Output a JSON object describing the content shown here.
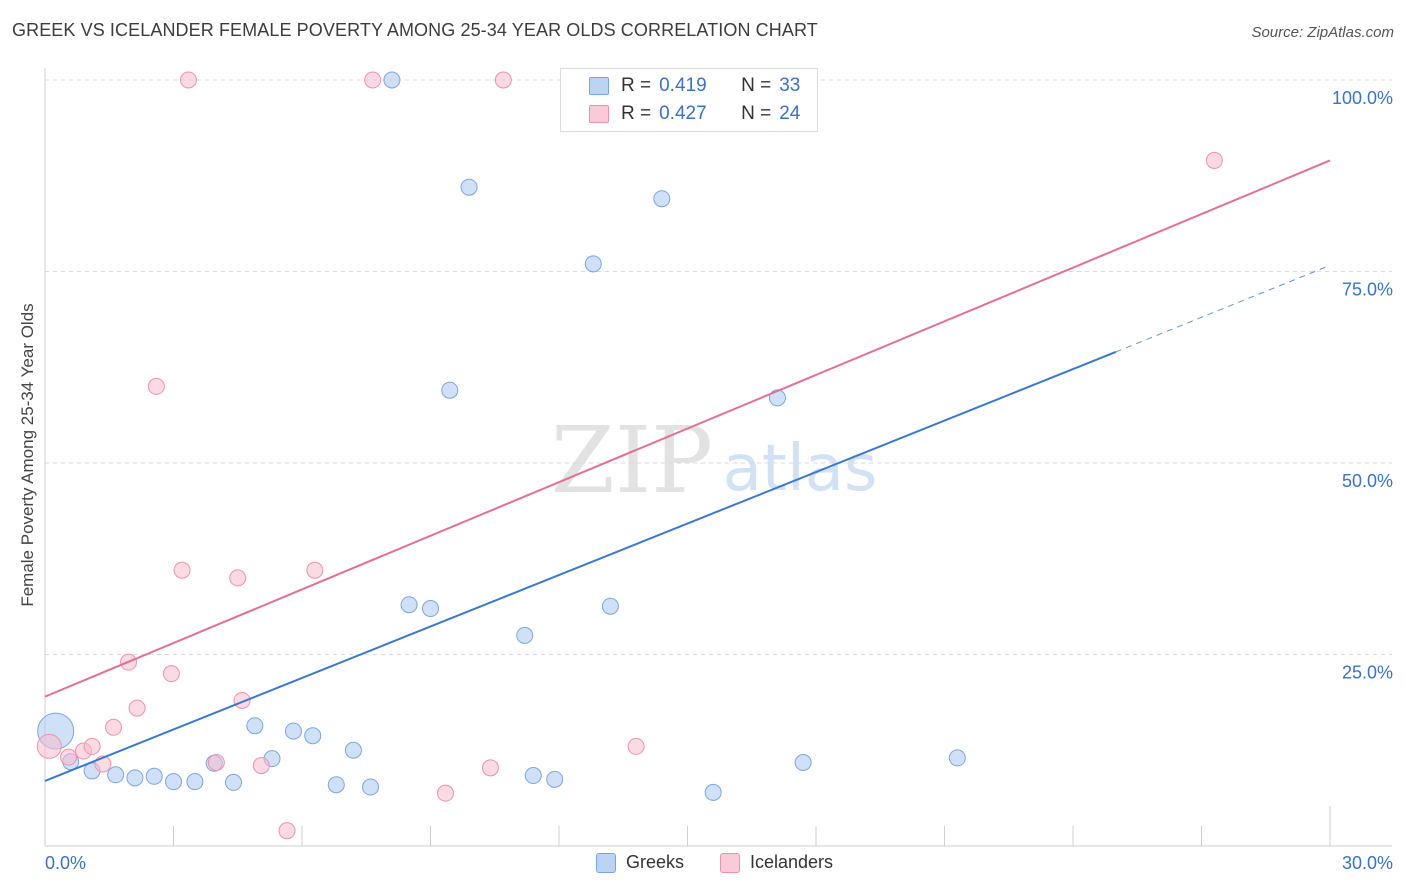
{
  "header": {
    "title": "GREEK VS ICELANDER FEMALE POVERTY AMONG 25-34 YEAR OLDS CORRELATION CHART",
    "source": "Source: ZipAtlas.com"
  },
  "colors": {
    "greek_fill": "#aac8f0",
    "greek_stroke": "#7aa6e0",
    "greek_line": "#3a78cc",
    "icelander_fill": "#f7bccd",
    "icelander_stroke": "#ee92ad",
    "icelander_line": "#e26f95",
    "tick_label": "#3a72c4",
    "grid": "#d9d9d9"
  },
  "watermark": {
    "zip": "ZIP",
    "atlas": "atlas"
  },
  "stats": {
    "greeks": {
      "r_label": "R =",
      "r_value": "0.419",
      "n_label": "N =",
      "n_value": "33"
    },
    "icelanders": {
      "r_label": "R =",
      "r_value": "0.427",
      "n_label": "N =",
      "n_value": "24"
    }
  },
  "legend": {
    "greeks": "Greeks",
    "icelanders": "Icelanders"
  },
  "chart_data": {
    "type": "scatter",
    "title": "GREEK VS ICELANDER FEMALE POVERTY AMONG 25-34 YEAR OLDS CORRELATION CHART",
    "xlabel": "",
    "ylabel": "Female Poverty Among 25-34 Year Olds",
    "xlim": [
      0,
      30
    ],
    "ylim": [
      0,
      100
    ],
    "x_tick_labels": [
      {
        "value": 0,
        "label": "0.0%"
      },
      {
        "value": 30,
        "label": "30.0%"
      }
    ],
    "x_minor_ticks": [
      3,
      6,
      9,
      12,
      15,
      18,
      21,
      24,
      27
    ],
    "y_ticks": [
      {
        "value": 25,
        "label": "25.0%"
      },
      {
        "value": 50,
        "label": "50.0%"
      },
      {
        "value": 75,
        "label": "75.0%"
      },
      {
        "value": 100,
        "label": "100.0%"
      }
    ],
    "grid": true,
    "legend_position": "bottom-center",
    "series": [
      {
        "name": "Greeks",
        "points": [
          {
            "x": 0.25,
            "y": 15.0,
            "size": "large"
          },
          {
            "x": 0.6,
            "y": 11.0
          },
          {
            "x": 1.1,
            "y": 9.8
          },
          {
            "x": 1.65,
            "y": 9.3
          },
          {
            "x": 2.1,
            "y": 8.9
          },
          {
            "x": 2.55,
            "y": 9.1
          },
          {
            "x": 3.0,
            "y": 8.4
          },
          {
            "x": 3.5,
            "y": 8.4
          },
          {
            "x": 3.95,
            "y": 10.8
          },
          {
            "x": 4.4,
            "y": 8.3
          },
          {
            "x": 4.9,
            "y": 15.7
          },
          {
            "x": 5.3,
            "y": 11.4
          },
          {
            "x": 5.8,
            "y": 15.0
          },
          {
            "x": 6.25,
            "y": 14.4
          },
          {
            "x": 6.8,
            "y": 8.0
          },
          {
            "x": 7.2,
            "y": 12.5
          },
          {
            "x": 7.6,
            "y": 7.7
          },
          {
            "x": 8.1,
            "y": 100.0
          },
          {
            "x": 8.5,
            "y": 31.5
          },
          {
            "x": 9.0,
            "y": 31.0
          },
          {
            "x": 9.45,
            "y": 59.5
          },
          {
            "x": 9.9,
            "y": 86.0
          },
          {
            "x": 11.2,
            "y": 27.5
          },
          {
            "x": 11.4,
            "y": 9.2
          },
          {
            "x": 11.9,
            "y": 8.7
          },
          {
            "x": 12.8,
            "y": 76.0
          },
          {
            "x": 13.2,
            "y": 31.3
          },
          {
            "x": 14.4,
            "y": 84.5
          },
          {
            "x": 15.6,
            "y": 7.0
          },
          {
            "x": 16.7,
            "y": 100.0
          },
          {
            "x": 17.1,
            "y": 58.5
          },
          {
            "x": 17.7,
            "y": 10.9
          },
          {
            "x": 21.3,
            "y": 11.5
          }
        ],
        "trend": {
          "x0": 0,
          "y0": 8.5,
          "x1": 25.0,
          "y1": 64.5,
          "dashed_to_x": 30,
          "dashed_to_y": 75.8
        }
      },
      {
        "name": "Icelanders",
        "points": [
          {
            "x": 0.1,
            "y": 13.0,
            "size": "medium"
          },
          {
            "x": 0.55,
            "y": 11.6
          },
          {
            "x": 0.9,
            "y": 12.4
          },
          {
            "x": 1.1,
            "y": 13.0
          },
          {
            "x": 1.35,
            "y": 10.7
          },
          {
            "x": 1.6,
            "y": 15.5
          },
          {
            "x": 1.95,
            "y": 24.0
          },
          {
            "x": 2.15,
            "y": 18.0
          },
          {
            "x": 2.6,
            "y": 60.0
          },
          {
            "x": 2.95,
            "y": 22.5
          },
          {
            "x": 3.2,
            "y": 36.0
          },
          {
            "x": 3.35,
            "y": 100.0
          },
          {
            "x": 4.0,
            "y": 10.9
          },
          {
            "x": 4.5,
            "y": 35.0
          },
          {
            "x": 4.6,
            "y": 19.0
          },
          {
            "x": 5.05,
            "y": 10.5
          },
          {
            "x": 5.65,
            "y": 2.0
          },
          {
            "x": 6.3,
            "y": 36.0
          },
          {
            "x": 7.65,
            "y": 100.0
          },
          {
            "x": 9.35,
            "y": 6.9
          },
          {
            "x": 10.4,
            "y": 10.2
          },
          {
            "x": 10.7,
            "y": 100.0
          },
          {
            "x": 13.8,
            "y": 13.0
          },
          {
            "x": 27.3,
            "y": 89.5
          }
        ],
        "trend": {
          "x0": 0,
          "y0": 19.5,
          "x1": 30,
          "y1": 89.5
        }
      }
    ]
  }
}
